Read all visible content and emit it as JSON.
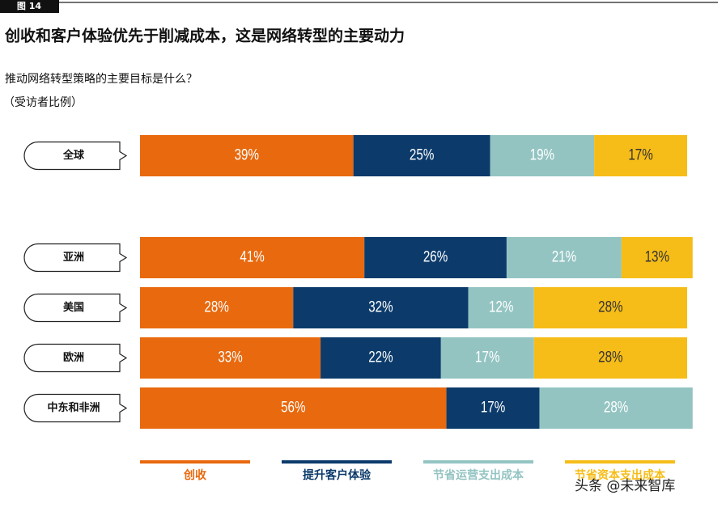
{
  "figure_label": "图 14",
  "watermark": "头条 @未来智库",
  "chart_data": {
    "type": "stacked-bar-horizontal",
    "title": "创收和客户体验优先于削减成本，这是网络转型的主要动力",
    "subtitle": "推动网络转型策略的主要目标是什么？",
    "note": "（受访者比例）",
    "categories": [
      "全球",
      "亚洲",
      "美国",
      "欧洲",
      "中东和非洲"
    ],
    "series": [
      {
        "name": "创收",
        "color": "#e8690e",
        "label_color": "#ffffff",
        "values": [
          39,
          41,
          28,
          33,
          56
        ],
        "value_labels": [
          "39%",
          "41%",
          "28%",
          "33%",
          "56%"
        ]
      },
      {
        "name": "提升客户体验",
        "color": "#0c3b6b",
        "label_color": "#ffffff",
        "values": [
          25,
          26,
          32,
          22,
          17
        ],
        "value_labels": [
          "25%",
          "26%",
          "32%",
          "22%",
          "17%"
        ]
      },
      {
        "name": "节省运营支出成本",
        "color": "#93c4c2",
        "label_color": "#ffffff",
        "values": [
          19,
          21,
          12,
          17,
          28
        ],
        "value_labels": [
          "19%",
          "21%",
          "12%",
          "17%",
          "28%"
        ]
      },
      {
        "name": "节省资本支出成本",
        "color": "#f6bd18",
        "label_color": "#333333",
        "values": [
          17,
          13,
          28,
          28,
          null
        ],
        "value_labels": [
          "17%",
          "13%",
          "28%",
          "28%",
          null
        ]
      }
    ]
  }
}
